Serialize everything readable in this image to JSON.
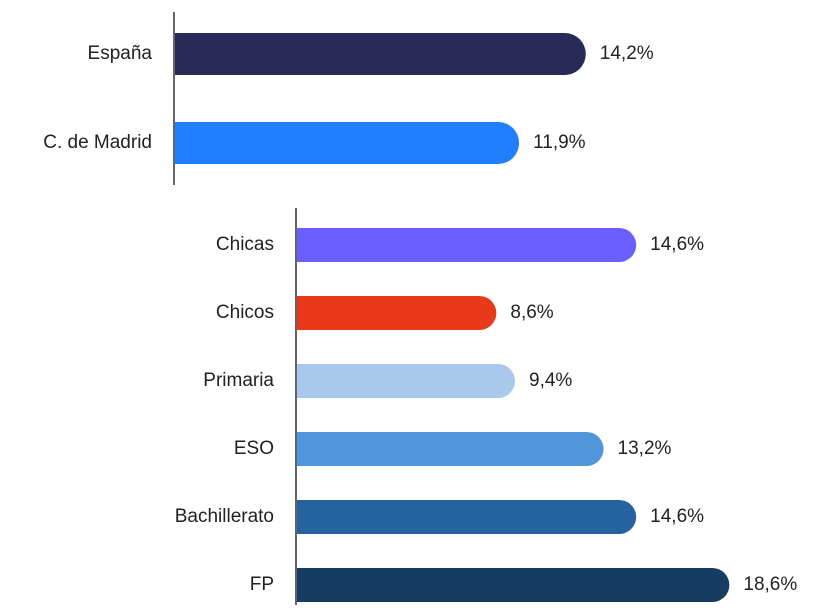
{
  "chart_data": [
    {
      "type": "bar",
      "orientation": "horizontal",
      "categories": [
        "España",
        "C. de Madrid"
      ],
      "values": [
        14.2,
        11.9
      ],
      "value_labels": [
        "14,2%",
        "11,9%"
      ],
      "colors": [
        "#262a56",
        "#1f7fff"
      ]
    },
    {
      "type": "bar",
      "orientation": "horizontal",
      "categories": [
        "Chicas",
        "Chicos",
        "Primaria",
        "ESO",
        "Bachillerato",
        "FP"
      ],
      "values": [
        14.6,
        8.6,
        9.4,
        13.2,
        14.6,
        18.6
      ],
      "value_labels": [
        "14,6%",
        "8,6%",
        "9,4%",
        "13,2%",
        "14,6%",
        "18,6%"
      ],
      "colors": [
        "#6a5eff",
        "#e8391a",
        "#a9c9ec",
        "#5096da",
        "#2463a0",
        "#183d63"
      ]
    }
  ]
}
